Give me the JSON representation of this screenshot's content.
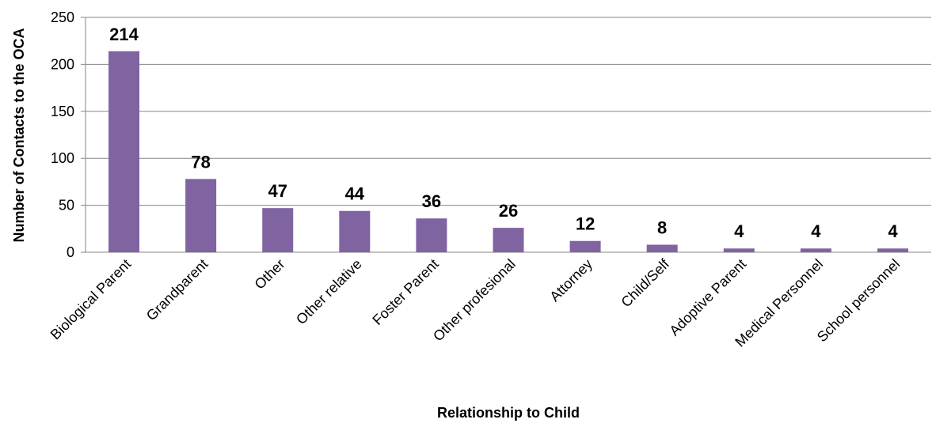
{
  "chart_data": {
    "type": "bar",
    "categories": [
      "Biological Parent",
      "Grandparent",
      "Other",
      "Other relative",
      "Foster Parent",
      "Other profesional",
      "Attorney",
      "Child/Self",
      "Adoptive Parent",
      "Medical Personnel",
      "School personnel"
    ],
    "values": [
      214,
      78,
      47,
      44,
      36,
      26,
      12,
      8,
      4,
      4,
      4
    ],
    "data_labels": [
      "214",
      "78",
      "47",
      "44",
      "36",
      "26",
      "12",
      "8",
      "4",
      "4",
      "4"
    ],
    "title": "",
    "xlabel": "Relationship to Child",
    "ylabel": "Number of Contacts to the OCA",
    "ylim": [
      0,
      250
    ],
    "yticks": [
      "0",
      "50",
      "100",
      "150",
      "200",
      "250"
    ],
    "grid": true,
    "legend": "none",
    "colors": {
      "bar": "#8064A2",
      "grid": "#868686"
    }
  }
}
